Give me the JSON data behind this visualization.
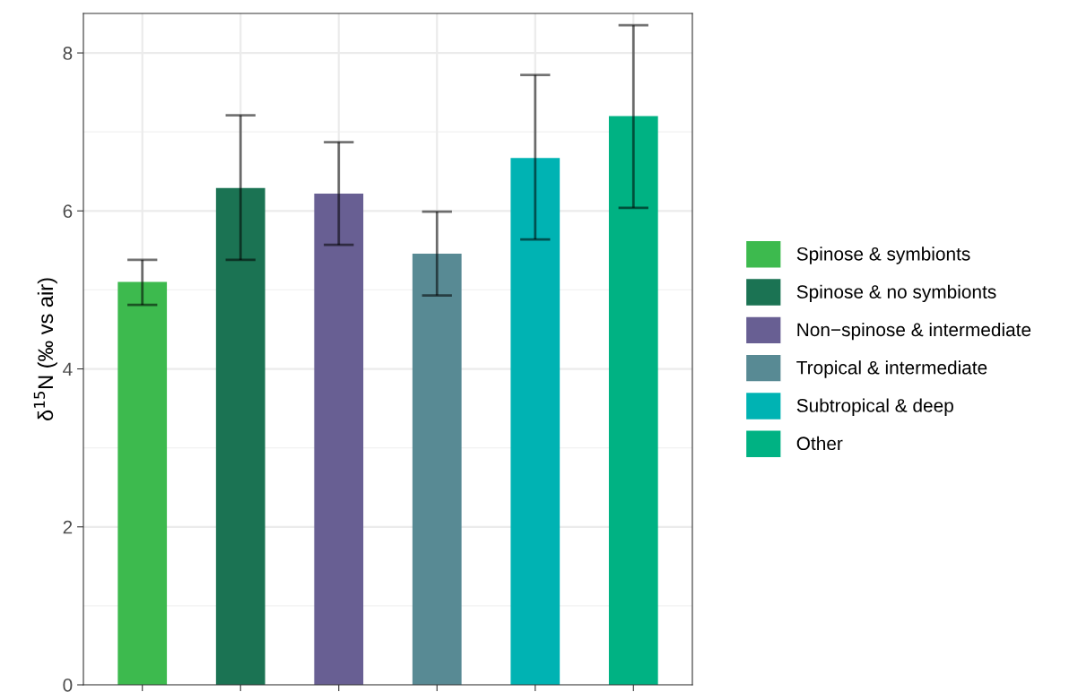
{
  "chart_data": {
    "type": "bar",
    "ylabel": "δ$^{15}$N (‰ vs air)",
    "categories": [
      null,
      null,
      null,
      null,
      null,
      null
    ],
    "series": [
      {
        "name": "Spinose & symbionts",
        "color": "#3dba4e",
        "values": [
          5.1,
          null,
          null,
          null,
          null,
          null
        ],
        "errors": [
          [
            4.81,
            5.38
          ],
          null,
          null,
          null,
          null,
          null
        ]
      },
      {
        "name": "Spinose & no symbionts",
        "color": "#1b7353",
        "values": [
          null,
          6.29,
          null,
          null,
          null,
          null
        ],
        "errors": [
          null,
          [
            5.38,
            7.21
          ],
          null,
          null,
          null,
          null
        ]
      },
      {
        "name": "Non−spinose & intermediate",
        "color": "#685f93",
        "values": [
          null,
          null,
          6.22,
          null,
          null,
          null
        ],
        "errors": [
          null,
          null,
          [
            5.57,
            6.87
          ],
          null,
          null,
          null
        ]
      },
      {
        "name": "Tropical & intermediate",
        "color": "#588a94",
        "values": [
          null,
          null,
          null,
          5.46,
          null,
          null
        ],
        "errors": [
          null,
          null,
          null,
          [
            4.93,
            5.99
          ],
          null,
          null
        ]
      },
      {
        "name": "Subtropical & deep",
        "color": "#00b3b3",
        "values": [
          null,
          null,
          null,
          null,
          6.67,
          null
        ],
        "errors": [
          null,
          null,
          null,
          null,
          [
            5.64,
            7.72
          ],
          null
        ]
      },
      {
        "name": "Other",
        "color": "#00b283",
        "values": [
          null,
          null,
          null,
          null,
          null,
          7.2
        ],
        "errors": [
          null,
          null,
          null,
          null,
          null,
          [
            6.04,
            8.35
          ]
        ]
      }
    ],
    "ylim": [
      0,
      8.5
    ],
    "yticks": [
      0,
      2,
      4,
      6,
      8
    ],
    "grid": true,
    "legend": "right",
    "tick_labels": "y"
  }
}
